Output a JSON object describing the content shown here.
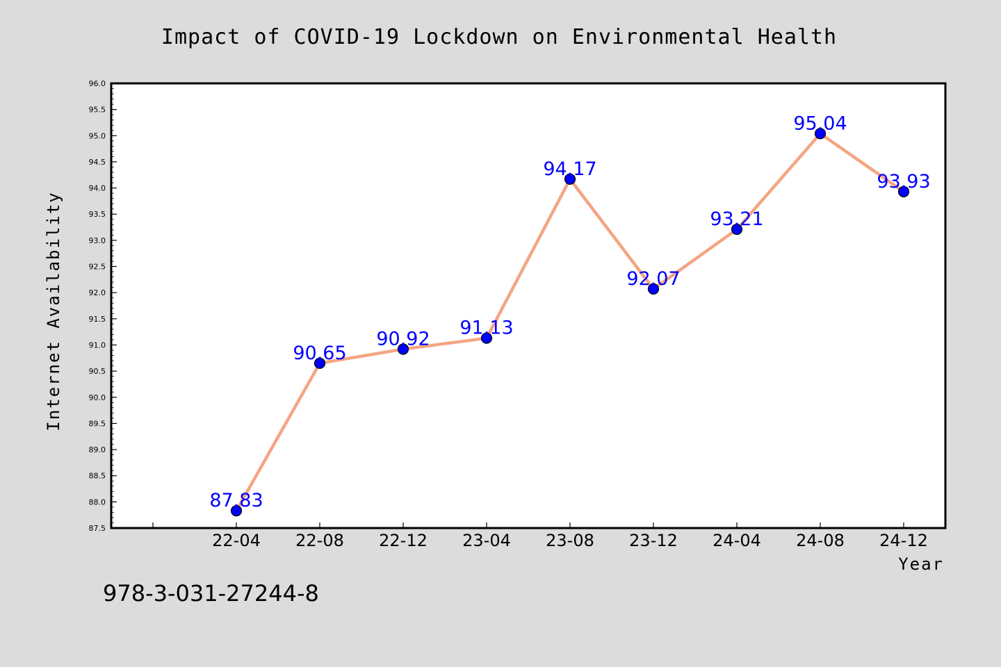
{
  "chart_data": {
    "type": "line",
    "title": "Impact of COVID-19 Lockdown on Environmental Health",
    "xlabel": "Year",
    "ylabel": "Internet Availability",
    "categories": [
      "22-04",
      "22-08",
      "22-12",
      "23-04",
      "23-08",
      "23-12",
      "24-04",
      "24-08",
      "24-12"
    ],
    "series": [
      {
        "values": [
          87.83,
          90.65,
          90.92,
          91.13,
          94.17,
          92.07,
          93.21,
          95.04,
          93.93
        ],
        "line_color": "#f4a582",
        "marker_color": "#0000ff"
      }
    ],
    "data_labels": [
      "87.83",
      "90.65",
      "90.92",
      "91.13",
      "94.17",
      "92.07",
      "93.21",
      "95.04",
      "93.93"
    ],
    "yticks": [
      "87.5",
      "88.0",
      "88.5",
      "89.0",
      "89.5",
      "90.0",
      "90.5",
      "91.0",
      "91.5",
      "92.0",
      "92.5",
      "93.0",
      "93.5",
      "94.0",
      "94.5",
      "95.0",
      "95.5",
      "96.0"
    ],
    "ylim": [
      87.5,
      96.0
    ],
    "grid": false,
    "legend": "none"
  },
  "footer": {
    "isbn": "978-3-031-27244-8"
  },
  "colors": {
    "background": "#dcdcdc",
    "plot_background": "#ffffff",
    "label_color": "#0000ff"
  }
}
